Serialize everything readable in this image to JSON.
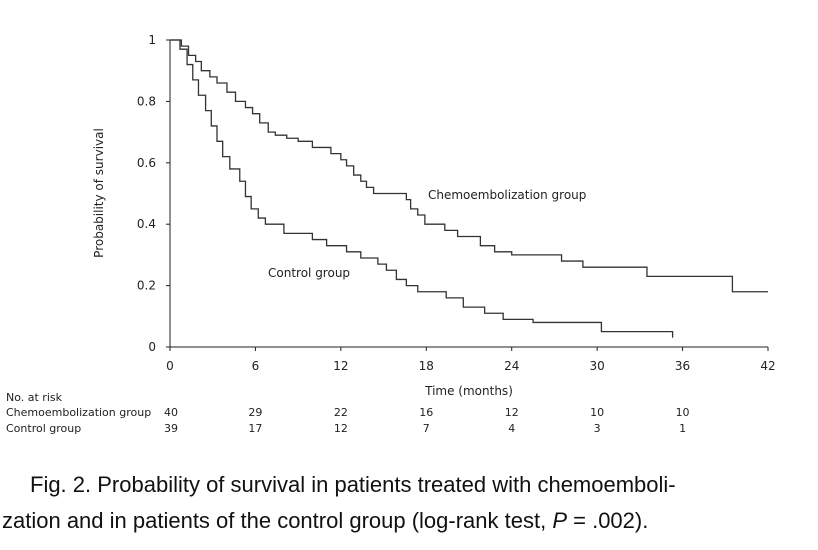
{
  "chart_data": {
    "type": "line",
    "title": "",
    "xlabel": "Time (months)",
    "ylabel": "Probability of survival",
    "xlim": [
      0,
      42
    ],
    "ylim": [
      0,
      1
    ],
    "x_ticks": [
      0,
      6,
      12,
      18,
      24,
      30,
      36,
      42
    ],
    "y_ticks": [
      0,
      0.2,
      0.4,
      0.6,
      0.8,
      1
    ],
    "y_tick_labels": [
      "0",
      "0.2",
      "0.4",
      "0.6",
      "0.8",
      "1"
    ],
    "grid": false,
    "series": [
      {
        "name": "Chemoembolization group",
        "color": "#333333",
        "steps": [
          [
            0,
            1.0
          ],
          [
            0.8,
            0.98
          ],
          [
            1.3,
            0.95
          ],
          [
            1.8,
            0.93
          ],
          [
            2.2,
            0.9
          ],
          [
            2.8,
            0.88
          ],
          [
            3.3,
            0.86
          ],
          [
            4.0,
            0.83
          ],
          [
            4.6,
            0.8
          ],
          [
            5.3,
            0.78
          ],
          [
            5.8,
            0.76
          ],
          [
            6.3,
            0.73
          ],
          [
            6.9,
            0.7
          ],
          [
            7.4,
            0.69
          ],
          [
            8.2,
            0.68
          ],
          [
            9.0,
            0.67
          ],
          [
            10.0,
            0.65
          ],
          [
            11.3,
            0.63
          ],
          [
            12.0,
            0.61
          ],
          [
            12.4,
            0.59
          ],
          [
            12.9,
            0.56
          ],
          [
            13.4,
            0.54
          ],
          [
            13.8,
            0.52
          ],
          [
            14.3,
            0.5
          ],
          [
            16.6,
            0.48
          ],
          [
            16.9,
            0.45
          ],
          [
            17.4,
            0.43
          ],
          [
            17.9,
            0.4
          ],
          [
            19.3,
            0.38
          ],
          [
            20.2,
            0.36
          ],
          [
            21.8,
            0.33
          ],
          [
            22.8,
            0.31
          ],
          [
            24.0,
            0.3
          ],
          [
            27.5,
            0.28
          ],
          [
            29.0,
            0.26
          ],
          [
            33.5,
            0.23
          ],
          [
            39.5,
            0.18
          ],
          [
            42,
            0.18
          ]
        ]
      },
      {
        "name": "Control group",
        "color": "#333333",
        "steps": [
          [
            0,
            1.0
          ],
          [
            0.7,
            0.97
          ],
          [
            1.2,
            0.92
          ],
          [
            1.6,
            0.87
          ],
          [
            2.0,
            0.82
          ],
          [
            2.5,
            0.77
          ],
          [
            2.9,
            0.72
          ],
          [
            3.3,
            0.67
          ],
          [
            3.7,
            0.62
          ],
          [
            4.2,
            0.58
          ],
          [
            4.9,
            0.54
          ],
          [
            5.3,
            0.49
          ],
          [
            5.7,
            0.45
          ],
          [
            6.2,
            0.42
          ],
          [
            6.7,
            0.4
          ],
          [
            8.0,
            0.37
          ],
          [
            10.0,
            0.35
          ],
          [
            11.0,
            0.33
          ],
          [
            12.4,
            0.31
          ],
          [
            13.4,
            0.29
          ],
          [
            14.6,
            0.27
          ],
          [
            15.2,
            0.25
          ],
          [
            15.9,
            0.22
          ],
          [
            16.6,
            0.2
          ],
          [
            17.4,
            0.18
          ],
          [
            19.4,
            0.16
          ],
          [
            20.6,
            0.13
          ],
          [
            22.1,
            0.11
          ],
          [
            23.4,
            0.09
          ],
          [
            25.5,
            0.08
          ],
          [
            30.3,
            0.05
          ],
          [
            35.3,
            0.03
          ]
        ]
      }
    ],
    "annotations": {
      "chemo_label": "Chemoembolization group",
      "control_label": "Control group"
    },
    "at_risk": {
      "header": "No. at risk",
      "rows": [
        {
          "label": "Chemoembolization group",
          "values": [
            40,
            29,
            22,
            16,
            12,
            10,
            10
          ]
        },
        {
          "label": "Control group",
          "values": [
            39,
            17,
            12,
            7,
            4,
            3,
            1
          ]
        }
      ]
    }
  },
  "caption": {
    "line1": "Fig. 2.  Probability of survival in patients treated with chemoemboli-",
    "line2_pre": "zation and in patients of the control group (log-rank test, ",
    "line2_p": "P",
    "line2_post": " = .002)."
  }
}
